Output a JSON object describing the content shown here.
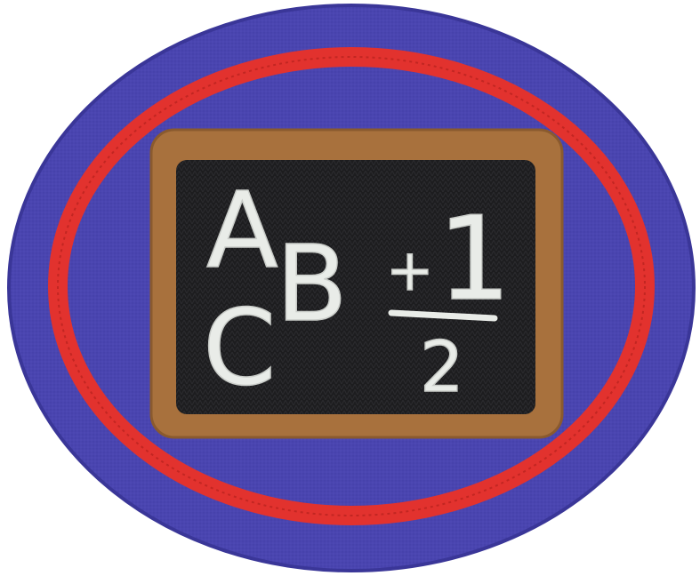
{
  "badge": {
    "colors": {
      "felt_blue": "#4a45b0",
      "felt_blue_dark": "#3a3698",
      "ring_red": "#e2322e",
      "frame_brown": "#a8713d",
      "board_black": "#1d1d1f",
      "chalk_white": "#e9ece8"
    },
    "chalkboard": {
      "letter_a": "A",
      "letter_b": "B",
      "letter_c": "C",
      "math_plus": "+",
      "math_one": "1",
      "math_two": "2"
    }
  }
}
